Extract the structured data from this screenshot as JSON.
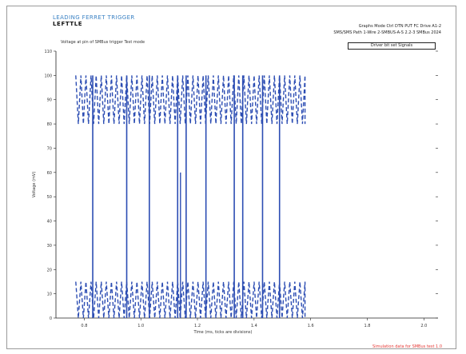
{
  "header": {
    "brand_top": "LEADING FERRET TRIGGER",
    "brand_sub": "LEFTTLE",
    "info_line1": "Graphs Mode Ctrl DTN PUT  FC Drive A1-2",
    "info_line2": "SMS/SMS Path 1-Wire 2-SMBUS-A-S 2.2-3 SMBus 2024",
    "info_box": "Driver bit set Signals",
    "plot_title": "Voltage at pin of SMBus trigger Test mode"
  },
  "footer": "Simulation data for SMBus test 1.0",
  "colors": {
    "line": "#2c4db3",
    "frame": "#9a9a9a"
  },
  "chart_data": {
    "type": "line",
    "title": "Voltage at pin of SMBus trigger Test mode",
    "xlabel": "Time (ms, ticks are divisions)",
    "ylabel": "Voltage (mV)",
    "xlim": [
      0.7,
      2.05
    ],
    "ylim": [
      0,
      110
    ],
    "grid": false,
    "y_ticks": [
      0,
      10,
      20,
      30,
      40,
      50,
      60,
      70,
      80,
      90,
      100,
      110
    ],
    "y_tick_labels": [
      "0",
      "10",
      "20",
      "30",
      "40",
      "50",
      "60",
      "70",
      "80",
      "90",
      "100",
      "110"
    ],
    "x_ticks": [
      0.8,
      1.0,
      1.2,
      1.4,
      1.6,
      1.8,
      2.0
    ],
    "x_tick_labels": [
      "0.8",
      "1.0",
      "1.2",
      "1.4",
      "1.6",
      "1.8",
      "2.0"
    ],
    "series": [
      {
        "high_band_start": 0.77,
        "high_band_end": 1.58,
        "high_band_range": [
          80,
          100
        ],
        "low_band_start": 0.77,
        "low_band_end": 1.58,
        "low_band_range": [
          0,
          15
        ],
        "transition_x": [
          0.83,
          0.95,
          1.03,
          1.13,
          1.16,
          1.23,
          1.33,
          1.36,
          1.43,
          1.49
        ],
        "spike_x": 1.14,
        "spike_value": 60
      }
    ]
  }
}
